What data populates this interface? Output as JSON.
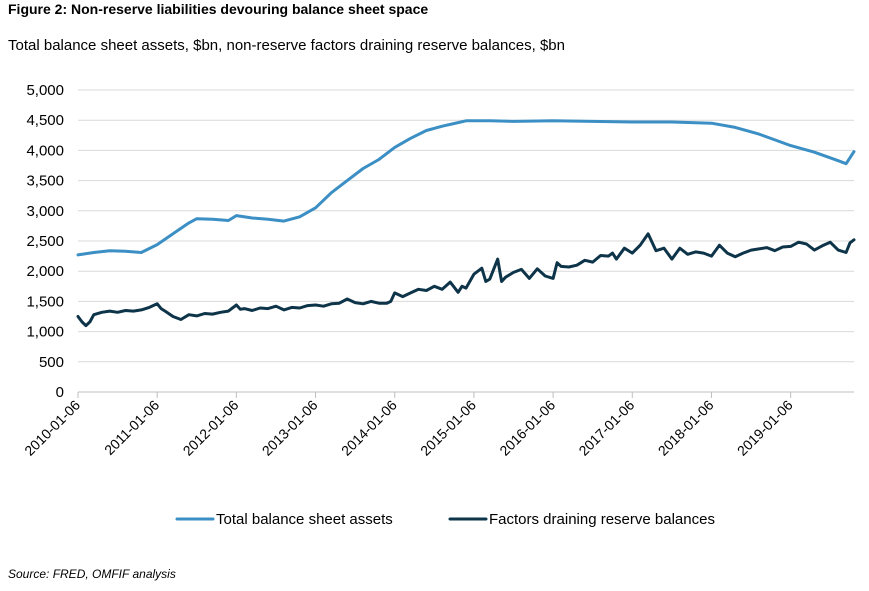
{
  "header": {
    "title": "Figure 2: Non-reserve liabilities devouring balance sheet space",
    "subtitle": "Total balance sheet assets, $bn, non-reserve factors draining reserve balances, $bn"
  },
  "footer": {
    "source": "Source: FRED, OMFIF analysis"
  },
  "colors": {
    "total": "#3b8fc4",
    "factors": "#0e3449",
    "grid": "#d9d9d9",
    "axis": "#bfbfbf"
  },
  "chart_data": {
    "type": "line",
    "x_type": "year",
    "ylim": [
      0,
      5000
    ],
    "y_ticks": [
      0,
      500,
      1000,
      1500,
      2000,
      2500,
      3000,
      3500,
      4000,
      4500,
      5000
    ],
    "y_tick_labels": [
      "0",
      "500",
      "1,000",
      "1,500",
      "2,000",
      "2,500",
      "3,000",
      "3,500",
      "4,000",
      "4,500",
      "5,000"
    ],
    "xlim": [
      2010.0,
      2019.8
    ],
    "x_ticks": [
      2010.0,
      2011.0,
      2012.0,
      2013.0,
      2014.0,
      2015.0,
      2016.0,
      2017.0,
      2018.0,
      2019.0
    ],
    "x_tick_labels": [
      "2010-01-06",
      "2011-01-06",
      "2012-01-06",
      "2013-01-06",
      "2014-01-06",
      "2015-01-06",
      "2016-01-06",
      "2017-01-06",
      "2018-01-06",
      "2019-01-06"
    ],
    "grid": "horizontal",
    "legend_position": "bottom",
    "series": [
      {
        "name": "Total balance sheet assets",
        "x": [
          2010.0,
          2010.2,
          2010.4,
          2010.6,
          2010.8,
          2011.0,
          2011.2,
          2011.4,
          2011.5,
          2011.7,
          2011.9,
          2012.0,
          2012.2,
          2012.4,
          2012.6,
          2012.8,
          2013.0,
          2013.2,
          2013.4,
          2013.6,
          2013.8,
          2014.0,
          2014.2,
          2014.4,
          2014.6,
          2014.8,
          2014.9,
          2015.0,
          2015.2,
          2015.5,
          2016.0,
          2016.5,
          2017.0,
          2017.5,
          2018.0,
          2018.3,
          2018.6,
          2019.0,
          2019.3,
          2019.6,
          2019.7,
          2019.8
        ],
        "values": [
          2270,
          2310,
          2340,
          2330,
          2310,
          2440,
          2620,
          2800,
          2870,
          2860,
          2840,
          2920,
          2880,
          2860,
          2830,
          2900,
          3050,
          3300,
          3500,
          3700,
          3850,
          4050,
          4200,
          4330,
          4400,
          4460,
          4490,
          4490,
          4490,
          4480,
          4490,
          4480,
          4470,
          4470,
          4450,
          4380,
          4270,
          4080,
          3970,
          3830,
          3780,
          3980
        ]
      },
      {
        "name": "Factors draining reserve balances",
        "x": [
          2010.0,
          2010.05,
          2010.1,
          2010.15,
          2010.2,
          2010.3,
          2010.4,
          2010.5,
          2010.6,
          2010.7,
          2010.8,
          2010.9,
          2011.0,
          2011.05,
          2011.1,
          2011.2,
          2011.3,
          2011.4,
          2011.5,
          2011.6,
          2011.7,
          2011.8,
          2011.9,
          2012.0,
          2012.05,
          2012.1,
          2012.2,
          2012.3,
          2012.4,
          2012.5,
          2012.6,
          2012.7,
          2012.8,
          2012.9,
          2013.0,
          2013.1,
          2013.2,
          2013.3,
          2013.4,
          2013.5,
          2013.6,
          2013.7,
          2013.8,
          2013.9,
          2013.95,
          2014.0,
          2014.1,
          2014.2,
          2014.3,
          2014.4,
          2014.5,
          2014.6,
          2014.7,
          2014.8,
          2014.85,
          2014.9,
          2015.0,
          2015.1,
          2015.15,
          2015.2,
          2015.3,
          2015.35,
          2015.4,
          2015.5,
          2015.6,
          2015.7,
          2015.8,
          2015.9,
          2016.0,
          2016.05,
          2016.1,
          2016.2,
          2016.3,
          2016.4,
          2016.5,
          2016.6,
          2016.7,
          2016.75,
          2016.8,
          2016.9,
          2017.0,
          2017.1,
          2017.2,
          2017.3,
          2017.4,
          2017.5,
          2017.6,
          2017.7,
          2017.8,
          2017.9,
          2018.0,
          2018.1,
          2018.2,
          2018.3,
          2018.4,
          2018.5,
          2018.6,
          2018.7,
          2018.8,
          2018.9,
          2019.0,
          2019.1,
          2019.2,
          2019.3,
          2019.4,
          2019.5,
          2019.6,
          2019.7,
          2019.75,
          2019.8
        ],
        "values": [
          1250,
          1160,
          1100,
          1160,
          1280,
          1320,
          1340,
          1320,
          1350,
          1340,
          1360,
          1400,
          1460,
          1380,
          1340,
          1250,
          1200,
          1280,
          1260,
          1300,
          1290,
          1320,
          1340,
          1440,
          1370,
          1380,
          1350,
          1390,
          1380,
          1420,
          1360,
          1400,
          1390,
          1430,
          1440,
          1420,
          1460,
          1470,
          1540,
          1480,
          1460,
          1500,
          1470,
          1470,
          1500,
          1640,
          1580,
          1640,
          1700,
          1680,
          1750,
          1700,
          1820,
          1650,
          1750,
          1720,
          1950,
          2050,
          1830,
          1870,
          2200,
          1830,
          1900,
          1980,
          2030,
          1880,
          2040,
          1920,
          1880,
          2140,
          2080,
          2070,
          2100,
          2180,
          2150,
          2260,
          2250,
          2300,
          2200,
          2380,
          2300,
          2430,
          2620,
          2340,
          2380,
          2200,
          2380,
          2280,
          2320,
          2300,
          2250,
          2430,
          2300,
          2240,
          2300,
          2350,
          2370,
          2390,
          2340,
          2400,
          2410,
          2480,
          2450,
          2350,
          2420,
          2480,
          2350,
          2310,
          2470,
          2520
        ]
      }
    ]
  }
}
